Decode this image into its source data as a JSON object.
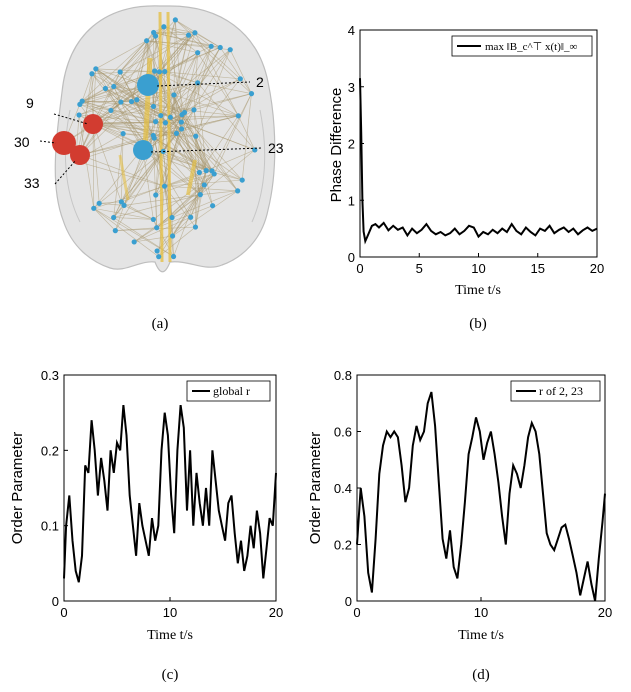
{
  "brain": {
    "labels": [
      "9",
      "30",
      "33",
      "2",
      "23"
    ],
    "colors": {
      "blue_node": "#3a9fd0",
      "red_node": "#d23c30",
      "edge": "#a89870",
      "thick_edge": "#e4c048",
      "brain_shell": "#dcdcdc"
    }
  },
  "captions": {
    "a": "(a)",
    "b": "(b)",
    "c": "(c)",
    "d": "(d)"
  },
  "chart_data": [
    {
      "id": "b",
      "type": "line",
      "ylabel": "Phase Difference",
      "xlabel": "Time t/s",
      "legend": "max ‖B_c^⊤ x(t)‖_∞",
      "legend_position": "top-right",
      "xlim": [
        0,
        20
      ],
      "ylim": [
        0,
        4
      ],
      "xticks": [
        0,
        5,
        10,
        15,
        20
      ],
      "yticks": [
        0,
        1,
        2,
        3,
        4
      ],
      "series": [
        {
          "x": [
            0,
            0.1,
            0.2,
            0.3,
            0.45,
            0.6,
            0.8,
            1,
            1.3,
            1.6,
            2,
            2.4,
            2.8,
            3.2,
            3.6,
            4,
            4.4,
            4.8,
            5.2,
            5.6,
            6,
            6.4,
            6.8,
            7.2,
            7.6,
            8,
            8.4,
            8.8,
            9.2,
            9.6,
            10,
            10.4,
            10.8,
            11.2,
            11.6,
            12,
            12.4,
            12.8,
            13.2,
            13.6,
            14,
            14.4,
            14.8,
            15.2,
            15.6,
            16,
            16.4,
            16.8,
            17.2,
            17.6,
            18,
            18.4,
            18.8,
            19.2,
            19.6,
            20
          ],
          "y": [
            3.15,
            2.2,
            1.0,
            0.45,
            0.28,
            0.35,
            0.45,
            0.55,
            0.58,
            0.52,
            0.6,
            0.47,
            0.55,
            0.48,
            0.52,
            0.38,
            0.5,
            0.42,
            0.48,
            0.58,
            0.46,
            0.4,
            0.44,
            0.38,
            0.42,
            0.5,
            0.4,
            0.46,
            0.55,
            0.52,
            0.36,
            0.44,
            0.4,
            0.48,
            0.42,
            0.5,
            0.44,
            0.58,
            0.46,
            0.4,
            0.52,
            0.44,
            0.38,
            0.5,
            0.46,
            0.55,
            0.42,
            0.48,
            0.52,
            0.44,
            0.5,
            0.4,
            0.47,
            0.52,
            0.46,
            0.5
          ]
        }
      ]
    },
    {
      "id": "c",
      "type": "line",
      "ylabel": "Order Parameter",
      "xlabel": "Time t/s",
      "legend": "global r",
      "legend_position": "top-right",
      "xlim": [
        0,
        20
      ],
      "ylim": [
        0,
        0.3
      ],
      "xticks": [
        0,
        10,
        20
      ],
      "yticks": [
        0,
        0.1,
        0.2,
        0.3
      ],
      "series": [
        {
          "x": [
            0,
            0.2,
            0.5,
            0.8,
            1.1,
            1.4,
            1.7,
            2,
            2.3,
            2.6,
            2.9,
            3.2,
            3.5,
            3.8,
            4.1,
            4.4,
            4.7,
            5,
            5.3,
            5.6,
            5.9,
            6.2,
            6.5,
            6.8,
            7.1,
            7.4,
            7.7,
            8,
            8.3,
            8.6,
            8.9,
            9.2,
            9.5,
            9.8,
            10.1,
            10.4,
            10.7,
            11,
            11.3,
            11.6,
            11.9,
            12.2,
            12.5,
            12.8,
            13.1,
            13.4,
            13.7,
            14,
            14.3,
            14.6,
            14.9,
            15.2,
            15.5,
            15.8,
            16.1,
            16.4,
            16.7,
            17,
            17.3,
            17.6,
            17.9,
            18.2,
            18.5,
            18.8,
            19.1,
            19.4,
            19.7,
            20
          ],
          "y": [
            0.03,
            0.1,
            0.14,
            0.08,
            0.04,
            0.025,
            0.06,
            0.18,
            0.17,
            0.24,
            0.2,
            0.14,
            0.19,
            0.16,
            0.12,
            0.2,
            0.17,
            0.21,
            0.2,
            0.26,
            0.22,
            0.14,
            0.1,
            0.06,
            0.13,
            0.1,
            0.08,
            0.06,
            0.11,
            0.08,
            0.1,
            0.2,
            0.25,
            0.22,
            0.14,
            0.09,
            0.2,
            0.26,
            0.23,
            0.12,
            0.2,
            0.1,
            0.17,
            0.13,
            0.1,
            0.15,
            0.1,
            0.2,
            0.16,
            0.12,
            0.1,
            0.08,
            0.13,
            0.14,
            0.09,
            0.05,
            0.08,
            0.04,
            0.06,
            0.1,
            0.07,
            0.12,
            0.09,
            0.03,
            0.07,
            0.11,
            0.1,
            0.17
          ]
        }
      ]
    },
    {
      "id": "d",
      "type": "line",
      "ylabel": "Order Parameter",
      "xlabel": "Time t/s",
      "legend": "r of 2, 23",
      "legend_position": "top-right",
      "xlim": [
        0,
        20
      ],
      "ylim": [
        0,
        0.8
      ],
      "xticks": [
        0,
        10,
        20
      ],
      "yticks": [
        0,
        0.2,
        0.4,
        0.6,
        0.8
      ],
      "series": [
        {
          "x": [
            0,
            0.3,
            0.6,
            0.9,
            1.2,
            1.5,
            1.8,
            2.1,
            2.4,
            2.7,
            3,
            3.3,
            3.6,
            3.9,
            4.2,
            4.5,
            4.8,
            5.1,
            5.4,
            5.7,
            6,
            6.3,
            6.6,
            6.9,
            7.2,
            7.5,
            7.8,
            8.1,
            8.4,
            8.7,
            9,
            9.3,
            9.6,
            9.9,
            10.2,
            10.5,
            10.8,
            11.1,
            11.4,
            11.7,
            12,
            12.3,
            12.6,
            12.9,
            13.2,
            13.5,
            13.8,
            14.1,
            14.4,
            14.7,
            15,
            15.3,
            15.6,
            15.9,
            16.2,
            16.5,
            16.8,
            17.1,
            17.4,
            17.7,
            18,
            18.3,
            18.6,
            18.9,
            19.2,
            19.5,
            19.8,
            20
          ],
          "y": [
            0.2,
            0.4,
            0.3,
            0.1,
            0.03,
            0.22,
            0.45,
            0.55,
            0.6,
            0.58,
            0.6,
            0.58,
            0.48,
            0.35,
            0.4,
            0.55,
            0.62,
            0.57,
            0.6,
            0.7,
            0.74,
            0.62,
            0.42,
            0.22,
            0.15,
            0.25,
            0.12,
            0.08,
            0.2,
            0.35,
            0.52,
            0.58,
            0.65,
            0.6,
            0.5,
            0.56,
            0.6,
            0.52,
            0.42,
            0.3,
            0.2,
            0.38,
            0.48,
            0.45,
            0.4,
            0.48,
            0.58,
            0.63,
            0.6,
            0.52,
            0.38,
            0.24,
            0.2,
            0.18,
            0.22,
            0.26,
            0.27,
            0.22,
            0.16,
            0.1,
            0.02,
            0.08,
            0.14,
            0.06,
            0.0,
            0.15,
            0.28,
            0.38
          ]
        }
      ]
    }
  ]
}
